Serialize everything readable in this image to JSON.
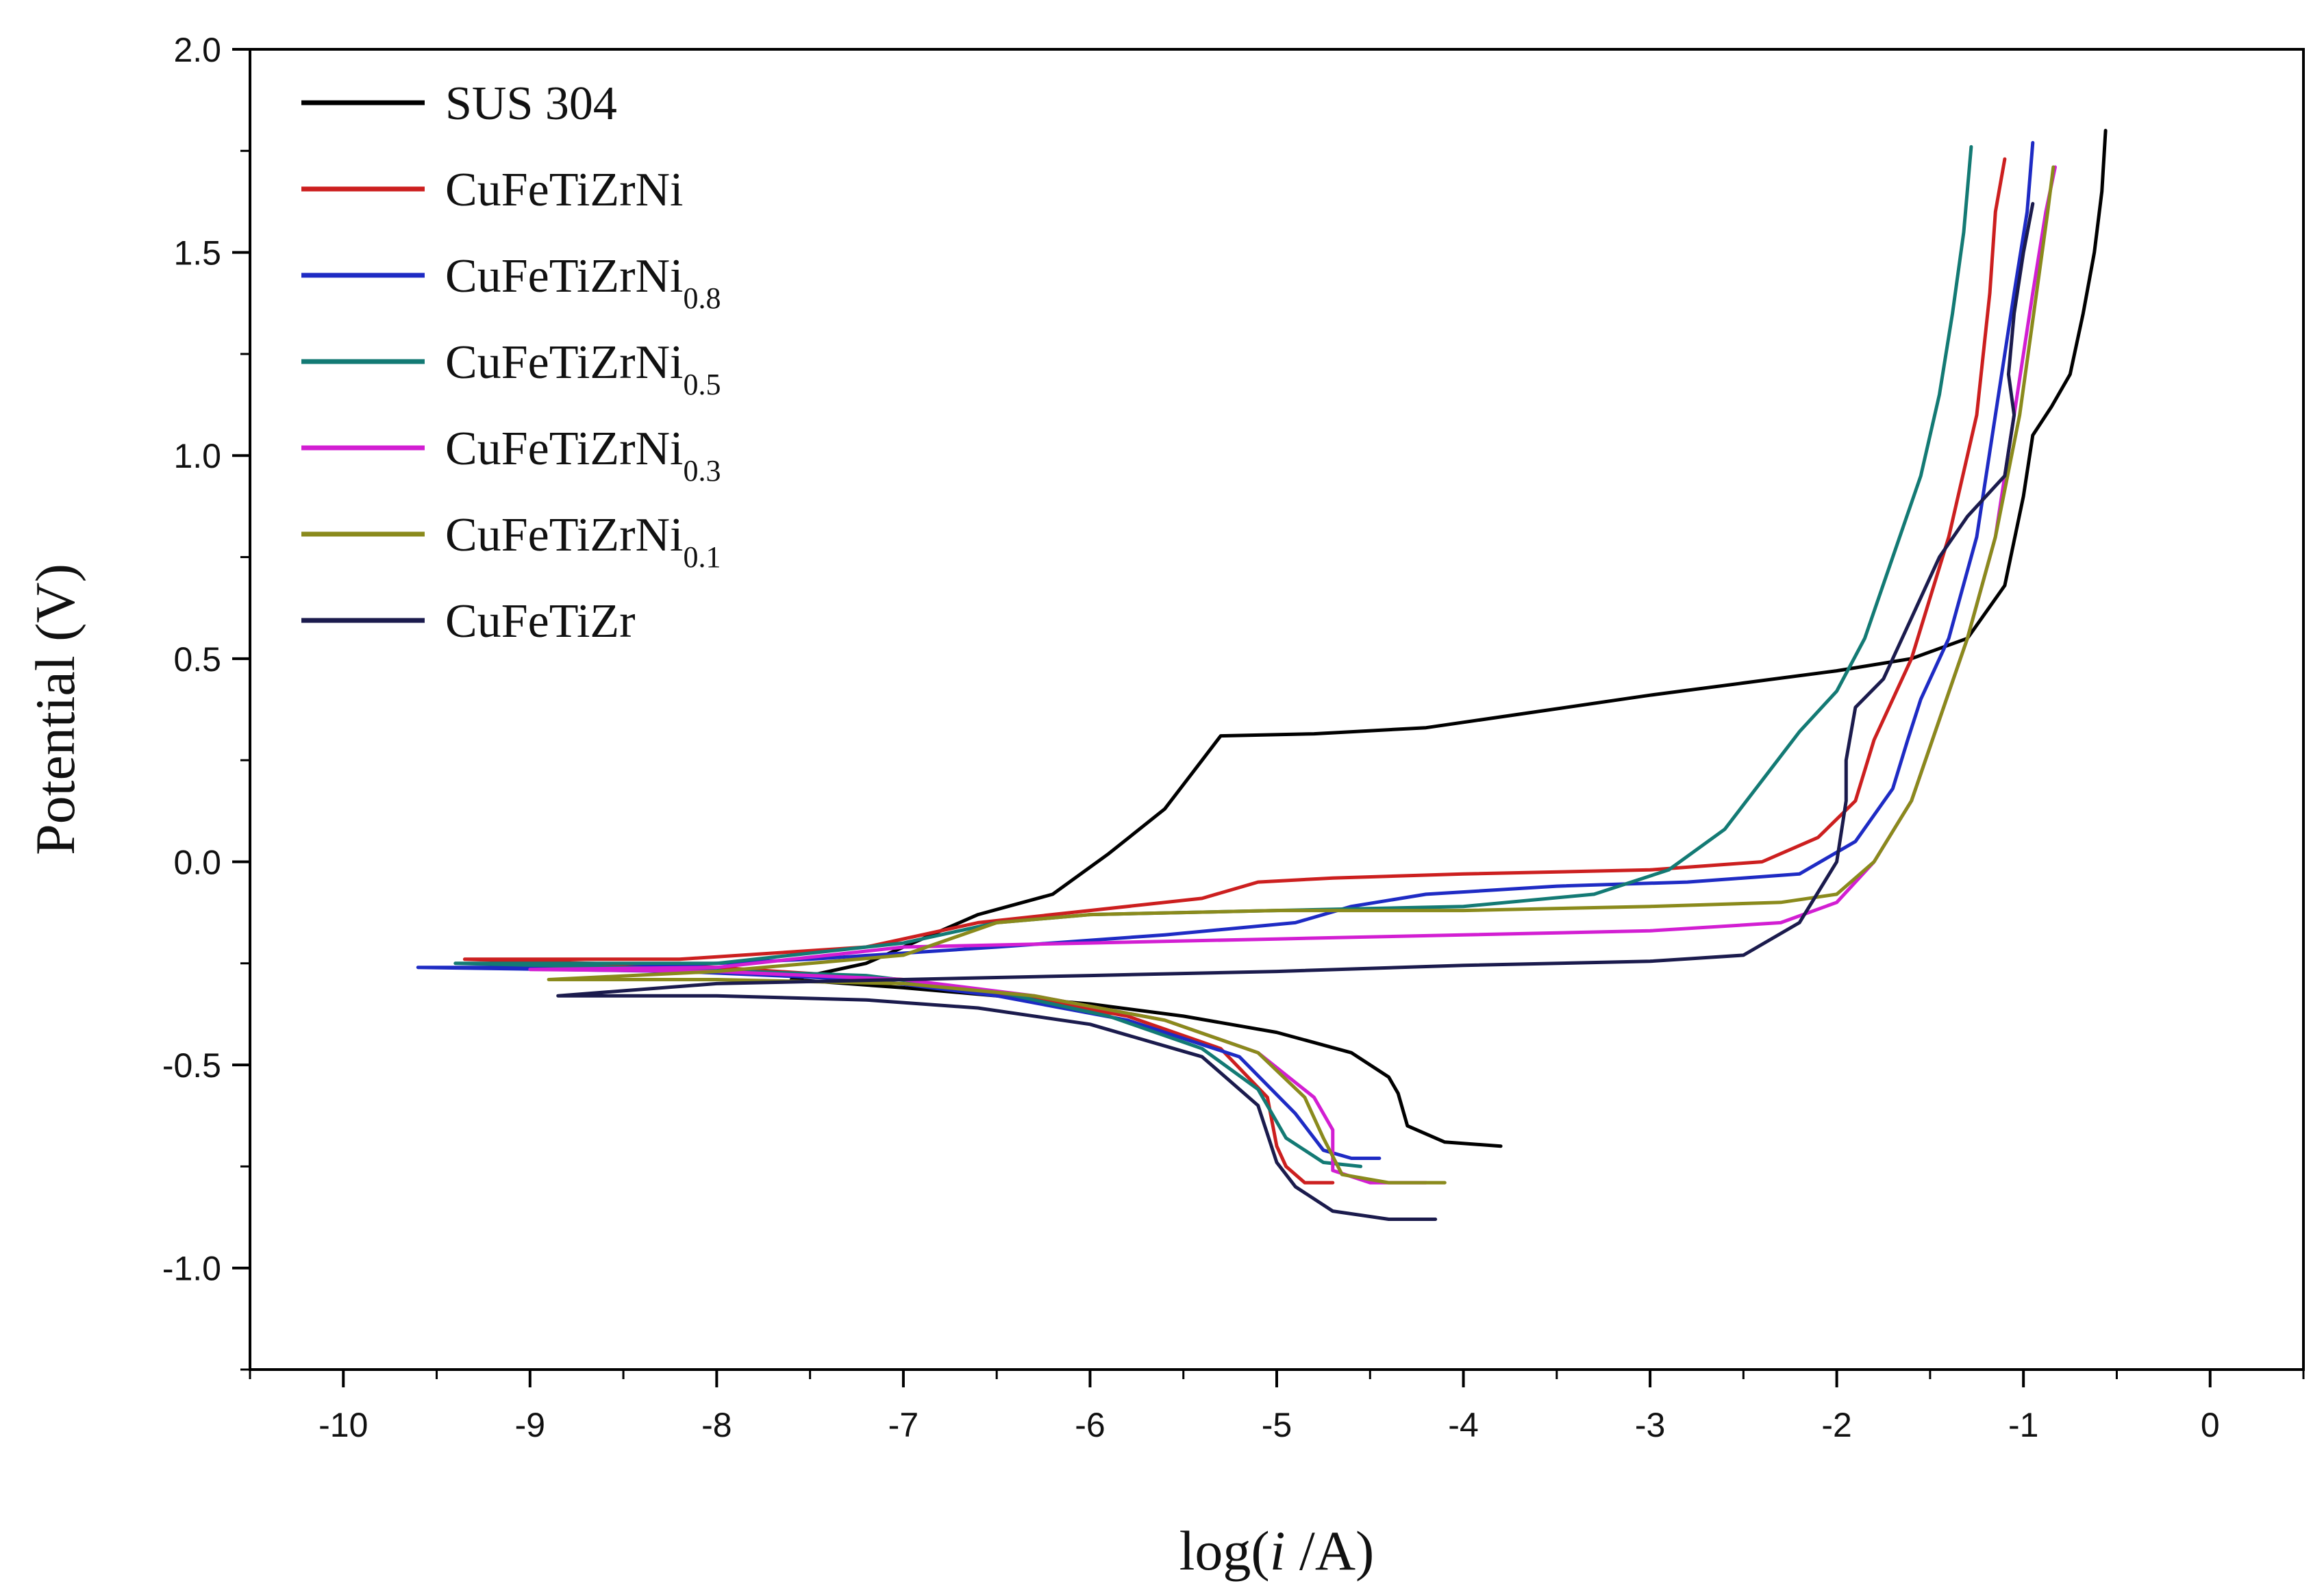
{
  "chart_data": {
    "type": "line",
    "title": "",
    "xlabel_prefix": "log(",
    "xlabel_italic": "i",
    "xlabel_suffix": " /A)",
    "ylabel": "Potential (V)",
    "xlim": [
      -10.5,
      0.5
    ],
    "ylim": [
      -1.25,
      2.0
    ],
    "x_ticks": [
      -10,
      -9,
      -8,
      -7,
      -6,
      -5,
      -4,
      -3,
      -2,
      -1,
      0
    ],
    "x_tick_labels": [
      "-10",
      "-9",
      "-8",
      "-7",
      "-6",
      "-5",
      "-4",
      "-3",
      "-2",
      "-1",
      "0"
    ],
    "y_ticks": [
      -1.0,
      -0.5,
      0.0,
      0.5,
      1.0,
      1.5,
      2.0
    ],
    "y_tick_labels": [
      "-1.0",
      "-0.5",
      "0.0",
      "0.5",
      "1.0",
      "1.5",
      "2.0"
    ],
    "legend_position": "top-left",
    "series": [
      {
        "name": "SUS 304",
        "label_main": "SUS 304",
        "label_sub": "",
        "color": "#000000",
        "points": [
          [
            -3.8,
            -0.7
          ],
          [
            -4.1,
            -0.69
          ],
          [
            -4.3,
            -0.65
          ],
          [
            -4.35,
            -0.57
          ],
          [
            -4.4,
            -0.53
          ],
          [
            -4.6,
            -0.47
          ],
          [
            -5.0,
            -0.42
          ],
          [
            -5.5,
            -0.38
          ],
          [
            -6.0,
            -0.35
          ],
          [
            -6.5,
            -0.33
          ],
          [
            -7.0,
            -0.31
          ],
          [
            -7.3,
            -0.3
          ],
          [
            -7.6,
            -0.29
          ],
          [
            -7.2,
            -0.25
          ],
          [
            -6.9,
            -0.19
          ],
          [
            -6.6,
            -0.13
          ],
          [
            -6.2,
            -0.08
          ],
          [
            -5.9,
            0.02
          ],
          [
            -5.6,
            0.13
          ],
          [
            -5.4,
            0.25
          ],
          [
            -5.3,
            0.31
          ],
          [
            -4.8,
            0.315
          ],
          [
            -4.2,
            0.33
          ],
          [
            -3.6,
            0.37
          ],
          [
            -3.0,
            0.41
          ],
          [
            -2.5,
            0.44
          ],
          [
            -2.0,
            0.47
          ],
          [
            -1.6,
            0.5
          ],
          [
            -1.3,
            0.55
          ],
          [
            -1.1,
            0.68
          ],
          [
            -1.0,
            0.9
          ],
          [
            -0.95,
            1.05
          ],
          [
            -0.85,
            1.12
          ],
          [
            -0.75,
            1.2
          ],
          [
            -0.68,
            1.35
          ],
          [
            -0.62,
            1.5
          ],
          [
            -0.58,
            1.65
          ],
          [
            -0.56,
            1.8
          ]
        ]
      },
      {
        "name": "CuFeTiZrNi",
        "label_main": "CuFeTiZrNi",
        "label_sub": "",
        "color": "#cc1f1f",
        "points": [
          [
            -4.7,
            -0.79
          ],
          [
            -4.85,
            -0.79
          ],
          [
            -4.95,
            -0.75
          ],
          [
            -5.0,
            -0.7
          ],
          [
            -5.05,
            -0.58
          ],
          [
            -5.3,
            -0.46
          ],
          [
            -5.8,
            -0.38
          ],
          [
            -6.4,
            -0.33
          ],
          [
            -7.0,
            -0.29
          ],
          [
            -8.0,
            -0.26
          ],
          [
            -9.35,
            -0.24
          ],
          [
            -8.2,
            -0.24
          ],
          [
            -7.2,
            -0.21
          ],
          [
            -6.6,
            -0.15
          ],
          [
            -6.0,
            -0.12
          ],
          [
            -5.4,
            -0.09
          ],
          [
            -5.1,
            -0.05
          ],
          [
            -4.7,
            -0.04
          ],
          [
            -4.0,
            -0.03
          ],
          [
            -3.0,
            -0.02
          ],
          [
            -2.4,
            0.0
          ],
          [
            -2.1,
            0.06
          ],
          [
            -1.9,
            0.15
          ],
          [
            -1.8,
            0.3
          ],
          [
            -1.6,
            0.5
          ],
          [
            -1.4,
            0.8
          ],
          [
            -1.25,
            1.1
          ],
          [
            -1.18,
            1.4
          ],
          [
            -1.15,
            1.6
          ],
          [
            -1.1,
            1.73
          ]
        ]
      },
      {
        "name": "CuFeTiZrNi0.8",
        "label_main": "CuFeTiZrNi",
        "label_sub": "0.8",
        "color": "#1e2bc4",
        "points": [
          [
            -4.45,
            -0.73
          ],
          [
            -4.6,
            -0.73
          ],
          [
            -4.75,
            -0.71
          ],
          [
            -4.9,
            -0.62
          ],
          [
            -5.2,
            -0.48
          ],
          [
            -5.8,
            -0.39
          ],
          [
            -6.5,
            -0.33
          ],
          [
            -7.2,
            -0.29
          ],
          [
            -8.2,
            -0.27
          ],
          [
            -9.6,
            -0.26
          ],
          [
            -8.5,
            -0.26
          ],
          [
            -7.5,
            -0.24
          ],
          [
            -6.5,
            -0.21
          ],
          [
            -5.6,
            -0.18
          ],
          [
            -4.9,
            -0.15
          ],
          [
            -4.6,
            -0.11
          ],
          [
            -4.2,
            -0.08
          ],
          [
            -3.5,
            -0.06
          ],
          [
            -2.8,
            -0.05
          ],
          [
            -2.2,
            -0.03
          ],
          [
            -1.9,
            0.05
          ],
          [
            -1.7,
            0.18
          ],
          [
            -1.62,
            0.3
          ],
          [
            -1.55,
            0.4
          ],
          [
            -1.4,
            0.55
          ],
          [
            -1.25,
            0.8
          ],
          [
            -1.15,
            1.1
          ],
          [
            -1.05,
            1.4
          ],
          [
            -0.98,
            1.6
          ],
          [
            -0.95,
            1.77
          ]
        ]
      },
      {
        "name": "CuFeTiZrNi0.5",
        "label_main": "CuFeTiZrNi",
        "label_sub": "0.5",
        "color": "#137a74",
        "points": [
          [
            -4.55,
            -0.75
          ],
          [
            -4.75,
            -0.74
          ],
          [
            -4.95,
            -0.68
          ],
          [
            -5.1,
            -0.56
          ],
          [
            -5.4,
            -0.46
          ],
          [
            -5.9,
            -0.38
          ],
          [
            -6.5,
            -0.32
          ],
          [
            -7.2,
            -0.28
          ],
          [
            -8.5,
            -0.26
          ],
          [
            -9.4,
            -0.25
          ],
          [
            -8.0,
            -0.25
          ],
          [
            -7.0,
            -0.2
          ],
          [
            -6.5,
            -0.15
          ],
          [
            -6.0,
            -0.13
          ],
          [
            -5.0,
            -0.12
          ],
          [
            -4.0,
            -0.11
          ],
          [
            -3.3,
            -0.08
          ],
          [
            -2.9,
            -0.02
          ],
          [
            -2.6,
            0.08
          ],
          [
            -2.4,
            0.2
          ],
          [
            -2.2,
            0.32
          ],
          [
            -2.0,
            0.42
          ],
          [
            -1.85,
            0.55
          ],
          [
            -1.7,
            0.75
          ],
          [
            -1.55,
            0.95
          ],
          [
            -1.45,
            1.15
          ],
          [
            -1.38,
            1.35
          ],
          [
            -1.32,
            1.55
          ],
          [
            -1.28,
            1.76
          ]
        ]
      },
      {
        "name": "CuFeTiZrNi0.3",
        "label_main": "CuFeTiZrNi",
        "label_sub": "0.3",
        "color": "#d21ed2",
        "points": [
          [
            -4.2,
            -0.79
          ],
          [
            -4.5,
            -0.79
          ],
          [
            -4.7,
            -0.76
          ],
          [
            -4.7,
            -0.66
          ],
          [
            -4.8,
            -0.58
          ],
          [
            -5.1,
            -0.47
          ],
          [
            -5.6,
            -0.39
          ],
          [
            -6.3,
            -0.33
          ],
          [
            -7.0,
            -0.29
          ],
          [
            -8.0,
            -0.27
          ],
          [
            -9.0,
            -0.265
          ],
          [
            -8.0,
            -0.26
          ],
          [
            -7.0,
            -0.21
          ],
          [
            -6.0,
            -0.2
          ],
          [
            -5.0,
            -0.19
          ],
          [
            -4.0,
            -0.18
          ],
          [
            -3.0,
            -0.17
          ],
          [
            -2.3,
            -0.15
          ],
          [
            -2.0,
            -0.1
          ],
          [
            -1.8,
            0.0
          ],
          [
            -1.6,
            0.15
          ],
          [
            -1.45,
            0.35
          ],
          [
            -1.3,
            0.55
          ],
          [
            -1.15,
            0.8
          ],
          [
            -1.05,
            1.1
          ],
          [
            -0.95,
            1.4
          ],
          [
            -0.88,
            1.6
          ],
          [
            -0.83,
            1.71
          ]
        ]
      },
      {
        "name": "CuFeTiZrNi0.1",
        "label_main": "CuFeTiZrNi",
        "label_sub": "0.1",
        "color": "#8a8a1c",
        "points": [
          [
            -4.1,
            -0.79
          ],
          [
            -4.4,
            -0.79
          ],
          [
            -4.65,
            -0.77
          ],
          [
            -4.75,
            -0.68
          ],
          [
            -4.85,
            -0.58
          ],
          [
            -5.1,
            -0.47
          ],
          [
            -5.6,
            -0.39
          ],
          [
            -6.3,
            -0.33
          ],
          [
            -7.0,
            -0.3
          ],
          [
            -8.0,
            -0.29
          ],
          [
            -8.9,
            -0.29
          ],
          [
            -8.0,
            -0.27
          ],
          [
            -7.0,
            -0.23
          ],
          [
            -6.5,
            -0.15
          ],
          [
            -6.0,
            -0.13
          ],
          [
            -5.0,
            -0.12
          ],
          [
            -4.0,
            -0.12
          ],
          [
            -3.0,
            -0.11
          ],
          [
            -2.3,
            -0.1
          ],
          [
            -2.0,
            -0.08
          ],
          [
            -1.8,
            0.0
          ],
          [
            -1.6,
            0.15
          ],
          [
            -1.45,
            0.35
          ],
          [
            -1.3,
            0.55
          ],
          [
            -1.15,
            0.8
          ],
          [
            -1.02,
            1.1
          ],
          [
            -0.93,
            1.4
          ],
          [
            -0.87,
            1.6
          ],
          [
            -0.84,
            1.71
          ]
        ]
      },
      {
        "name": "CuFeTiZr",
        "label_main": "CuFeTiZr",
        "label_sub": "",
        "color": "#1b1b4d",
        "points": [
          [
            -4.15,
            -0.88
          ],
          [
            -4.4,
            -0.88
          ],
          [
            -4.7,
            -0.86
          ],
          [
            -4.9,
            -0.8
          ],
          [
            -5.0,
            -0.74
          ],
          [
            -5.1,
            -0.6
          ],
          [
            -5.4,
            -0.48
          ],
          [
            -6.0,
            -0.4
          ],
          [
            -6.6,
            -0.36
          ],
          [
            -7.2,
            -0.34
          ],
          [
            -8.0,
            -0.33
          ],
          [
            -8.85,
            -0.33
          ],
          [
            -8.0,
            -0.3
          ],
          [
            -7.0,
            -0.29
          ],
          [
            -6.0,
            -0.28
          ],
          [
            -5.0,
            -0.27
          ],
          [
            -4.0,
            -0.255
          ],
          [
            -3.0,
            -0.245
          ],
          [
            -2.5,
            -0.23
          ],
          [
            -2.2,
            -0.15
          ],
          [
            -2.0,
            0.0
          ],
          [
            -1.95,
            0.15
          ],
          [
            -1.95,
            0.25
          ],
          [
            -1.9,
            0.38
          ],
          [
            -1.75,
            0.45
          ],
          [
            -1.6,
            0.6
          ],
          [
            -1.45,
            0.75
          ],
          [
            -1.3,
            0.85
          ],
          [
            -1.1,
            0.95
          ],
          [
            -1.05,
            1.1
          ],
          [
            -1.08,
            1.2
          ],
          [
            -1.05,
            1.35
          ],
          [
            -1.0,
            1.5
          ],
          [
            -0.95,
            1.62
          ]
        ]
      }
    ]
  }
}
